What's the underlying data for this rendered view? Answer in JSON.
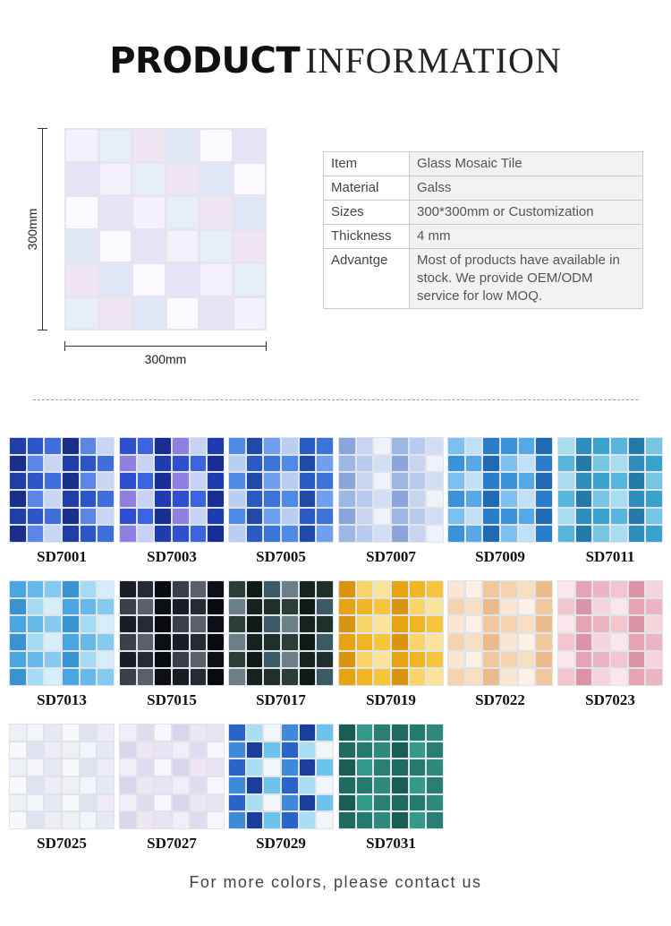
{
  "header": {
    "title_bold": "PRODUCT",
    "title_light": "INFORMATION"
  },
  "sample": {
    "width_label": "300mm",
    "height_label": "300mm",
    "palette": [
      "#f4f1fb",
      "#e9e3f7",
      "#fbf8ff",
      "#dfe7f6",
      "#f0e6f3",
      "#e6eef8"
    ]
  },
  "info_table": [
    {
      "key": "Item",
      "value": "Glass Mosaic Tile"
    },
    {
      "key": "Material",
      "value": "Galss"
    },
    {
      "key": "Sizes",
      "value": "300*300mm or Customization"
    },
    {
      "key": "Thickness",
      "value": "4 mm"
    },
    {
      "key": "Advantge",
      "value": "Most of products have available in stock. We provide OEM/ODM service for low MOQ."
    }
  ],
  "swatches": [
    {
      "code": "SD7001",
      "colors": [
        "#1f3fa6",
        "#2c55c8",
        "#3e6fdc",
        "#1a2f8a",
        "#5b85e6",
        "#c9d6f3"
      ]
    },
    {
      "code": "SD7003",
      "colors": [
        "#1e3bb0",
        "#2d4fd0",
        "#3a64e0",
        "#182e95",
        "#8e7fe0",
        "#c7d0f5"
      ]
    },
    {
      "code": "SD7005",
      "colors": [
        "#2a5bc4",
        "#3b73d8",
        "#4e8ae6",
        "#2149a8",
        "#6fa0ef",
        "#b9cff2"
      ]
    },
    {
      "code": "SD7007",
      "colors": [
        "#9db7e4",
        "#b8cbee",
        "#d2def5",
        "#8aa6dc",
        "#c9d4f0",
        "#eef2fb"
      ]
    },
    {
      "code": "SD7009",
      "colors": [
        "#2a7ec9",
        "#3a93d8",
        "#56a8e6",
        "#1f6ab3",
        "#7cc0ef",
        "#bfe0f6"
      ]
    },
    {
      "code": "SD7011",
      "colors": [
        "#2e8fbf",
        "#3aa2cf",
        "#58b6dc",
        "#237aa8",
        "#76c6e3",
        "#a9dcee"
      ]
    },
    {
      "code": "SD7013",
      "colors": [
        "#4aa6e0",
        "#66b9e8",
        "#86cbef",
        "#3a93d1",
        "#a5dbf3",
        "#d6eef9"
      ]
    },
    {
      "code": "SD7015",
      "colors": [
        "#0d0f14",
        "#1a1d24",
        "#262a33",
        "#080a0e",
        "#3a3f4a",
        "#5a5f6a"
      ]
    },
    {
      "code": "SD7017",
      "colors": [
        "#15221e",
        "#1f302a",
        "#2a3d36",
        "#101a17",
        "#3b5a66",
        "#6b7f86"
      ]
    },
    {
      "code": "SD7019",
      "colors": [
        "#e6a413",
        "#f0b522",
        "#f6c53c",
        "#d99410",
        "#f9d468",
        "#fbe39a"
      ]
    },
    {
      "code": "SD7022",
      "colors": [
        "#f1c79d",
        "#f5d3ae",
        "#f8dfc2",
        "#ecbb8c",
        "#fae7d3",
        "#fdf1e6"
      ]
    },
    {
      "code": "SD7023",
      "colors": [
        "#e6a3b3",
        "#edb4c1",
        "#f2c5cf",
        "#dd93a6",
        "#f6d4dc",
        "#fae6eb"
      ]
    },
    {
      "code": "SD7025",
      "colors": [
        "#eef0f6",
        "#f4f5fa",
        "#e6e8f2",
        "#f9f9fc",
        "#dfe3ef",
        "#f0ecf6"
      ]
    },
    {
      "code": "SD7027",
      "colors": [
        "#e9e4f3",
        "#f2eef9",
        "#e0dbee",
        "#f8f6fc",
        "#d9d6ec",
        "#efe6f3"
      ]
    },
    {
      "code": "SD7029",
      "colors": [
        "#1b3e9c",
        "#6cc3ec",
        "#2b64c9",
        "#a9ddf4",
        "#f2f6fb",
        "#3d8ad8"
      ]
    },
    {
      "code": "SD7031",
      "colors": [
        "#1f6b60",
        "#247a6d",
        "#2d8a7c",
        "#1a5d53",
        "#34998a",
        "#2a7f72"
      ]
    }
  ],
  "footer": {
    "text": "For more colors, please contact us"
  }
}
